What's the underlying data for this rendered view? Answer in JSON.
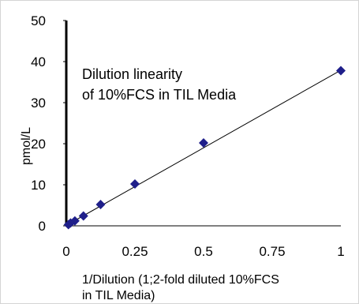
{
  "chart_data": {
    "type": "scatter",
    "title": "",
    "annotation_lines": [
      "Dilution linearity",
      "of 10%FCS in TIL Media"
    ],
    "xlabel_lines": [
      "1/Dilution (1;2-fold diluted 10%FCS",
      "in TIL Media)"
    ],
    "ylabel": "pmol/L",
    "xlim": [
      0,
      1
    ],
    "ylim": [
      0,
      50
    ],
    "x_ticks": [
      0,
      0.25,
      0.5,
      0.75,
      1
    ],
    "x_tick_labels": [
      "0",
      "0.25",
      "0.5",
      "0.75",
      "1"
    ],
    "y_ticks": [
      0,
      10,
      20,
      30,
      40,
      50
    ],
    "y_tick_labels": [
      "0",
      "10",
      "20",
      "30",
      "40",
      "50"
    ],
    "grid": false,
    "legend": "none",
    "series": [
      {
        "x": [
          1,
          0.5,
          0.25,
          0.125,
          0.0625,
          0.03125,
          0.015625,
          0.0078125
        ],
        "y": [
          37.8,
          20.2,
          10.2,
          5.2,
          2.4,
          1.2,
          0.7,
          0.3
        ],
        "color": "#1f1f8a",
        "marker": "diamond"
      }
    ],
    "trendline": {
      "x": [
        0,
        1
      ],
      "y": [
        0.1,
        37.9
      ],
      "color": "#000000"
    }
  }
}
